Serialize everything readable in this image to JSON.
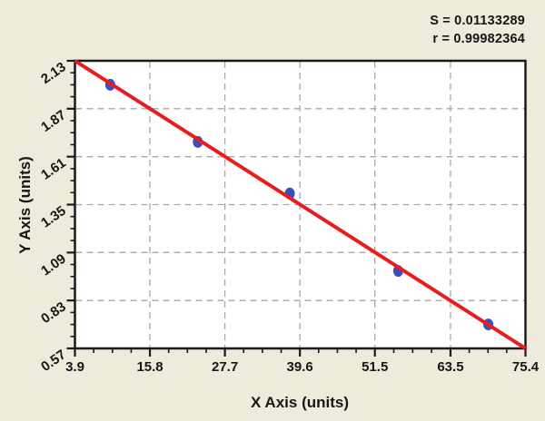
{
  "chart_data": {
    "type": "scatter",
    "title": "",
    "xlabel": "X Axis (units)",
    "ylabel": "Y Axis (units)",
    "x_ticks": [
      "3.9",
      "15.8",
      "27.7",
      "39.6",
      "51.5",
      "63.5",
      "75.4"
    ],
    "y_ticks": [
      "0.57",
      "0.83",
      "1.09",
      "1.35",
      "1.61",
      "1.87",
      "2.13"
    ],
    "xlim": [
      3.9,
      75.4
    ],
    "ylim": [
      0.57,
      2.13
    ],
    "grid": true,
    "legend": "none",
    "minor_divisions": 4,
    "points": [
      [
        9.5,
        2.0
      ],
      [
        23.4,
        1.69
      ],
      [
        38.0,
        1.41
      ],
      [
        55.2,
        0.99
      ],
      [
        69.5,
        0.7
      ]
    ],
    "fit_line": {
      "x": [
        3.9,
        75.4
      ],
      "y": [
        2.13,
        0.57
      ]
    },
    "annotations": [
      "S = 0.01133289",
      "r = 0.99982364"
    ],
    "colors": {
      "background": "#edebdb",
      "plot_bg": "#ffffff",
      "grid": "#a8a8a8",
      "axis": "#1a1a1a",
      "line": "#e81e1e",
      "point": "#3b4ec0",
      "text": "#161616"
    }
  }
}
